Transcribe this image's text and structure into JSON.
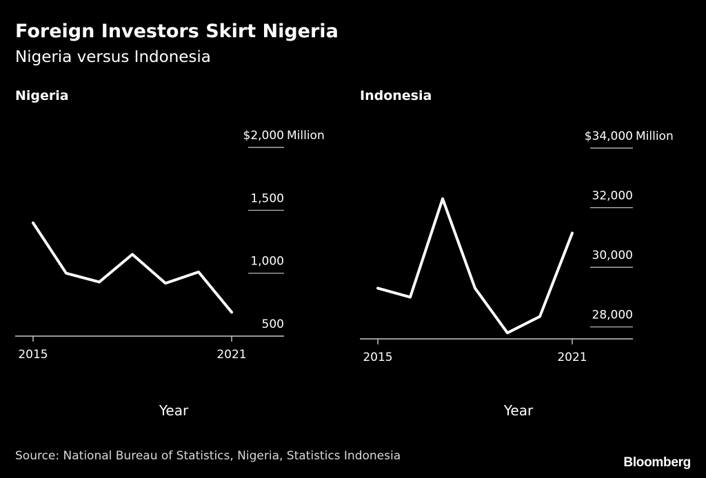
{
  "header": {
    "title": "Foreign Investors Skirt Nigeria",
    "subtitle": "Nigeria versus Indonesia"
  },
  "footer": {
    "source": "Source: National Bureau of Statistics, Nigeria, Statistics Indonesia",
    "logo": "Bloomberg"
  },
  "colors": {
    "background": "#000000",
    "line": "#ffffff",
    "grid": "#cccccc",
    "text": "#ffffff"
  },
  "chart_data": [
    {
      "type": "line",
      "panel_title": "Nigeria",
      "xlabel": "Year",
      "ylabel": "",
      "unit_label": "Million",
      "currency_prefix": "$",
      "x": [
        2015,
        2016,
        2017,
        2018,
        2019,
        2020,
        2021
      ],
      "x_tick_labels": [
        "2015",
        "2021"
      ],
      "y_ticks": [
        500,
        1000,
        1500,
        2000
      ],
      "y_tick_labels": [
        "500",
        "1,000",
        "1,500",
        "2,000"
      ],
      "ylim": [
        500,
        2000
      ],
      "grid": true,
      "series": [
        {
          "values": [
            1400,
            1000,
            930,
            1150,
            920,
            1010,
            690
          ]
        }
      ]
    },
    {
      "type": "line",
      "panel_title": "Indonesia",
      "xlabel": "Year",
      "ylabel": "",
      "unit_label": "Million",
      "currency_prefix": "$",
      "x": [
        2015,
        2016,
        2017,
        2018,
        2019,
        2020,
        2021
      ],
      "x_tick_labels": [
        "2015",
        "2021"
      ],
      "y_ticks": [
        28000,
        30000,
        32000,
        34000
      ],
      "y_tick_labels": [
        "28,000",
        "30,000",
        "32,000",
        "34,000"
      ],
      "ylim": [
        27600,
        34000
      ],
      "grid": true,
      "series": [
        {
          "values": [
            29300,
            29000,
            32300,
            29300,
            27800,
            28350,
            31150
          ]
        }
      ]
    }
  ]
}
